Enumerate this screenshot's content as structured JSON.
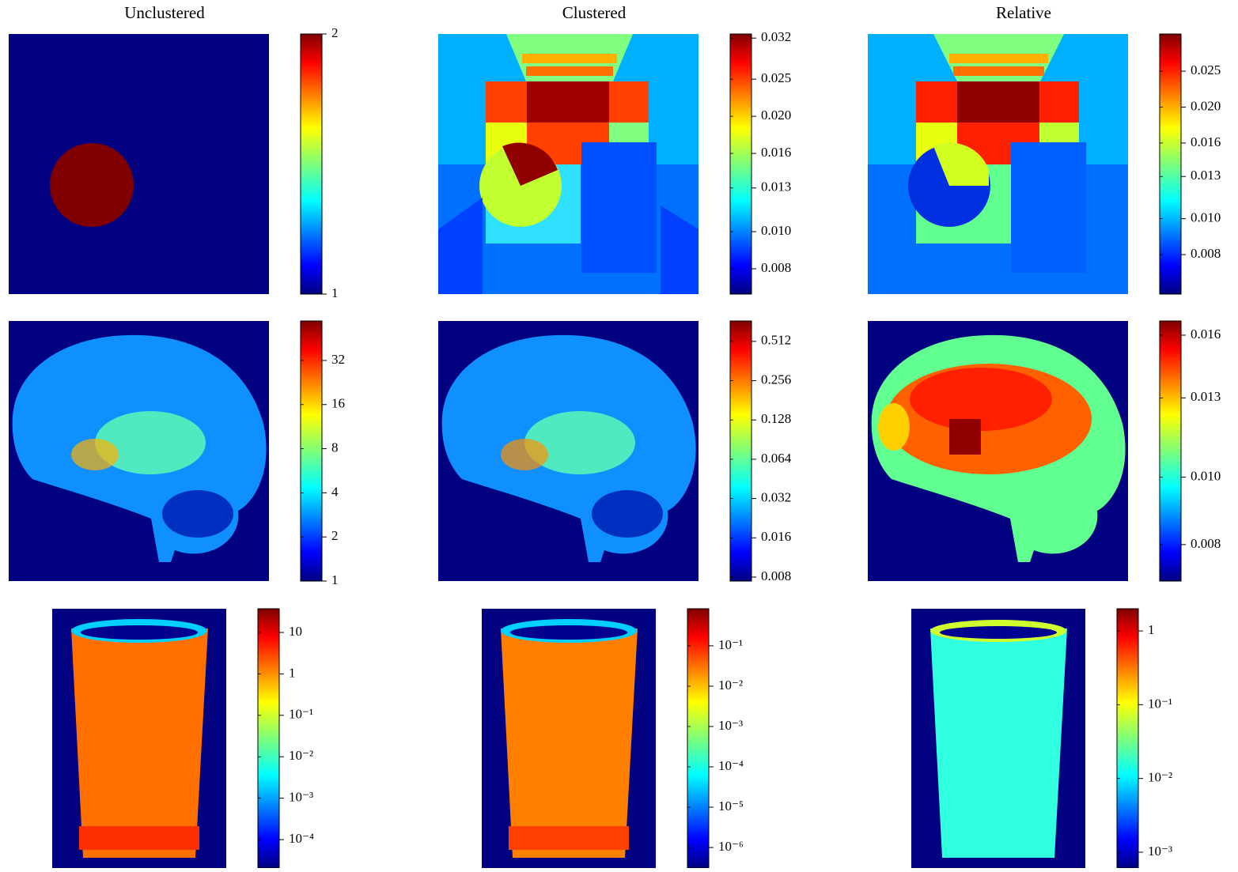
{
  "chart_data": [
    {
      "type": "heatmap",
      "title": "Unclustered",
      "colormap": "jet",
      "log": false,
      "clim": [
        1,
        2
      ],
      "ticks": [
        1,
        2
      ]
    },
    {
      "type": "heatmap",
      "title": "Clustered",
      "colormap": "jet",
      "log": true,
      "clim": [
        0.00687,
        0.0328
      ],
      "ticks": [
        0.008,
        {
          "value": 0.01,
          "label": "0.010"
        },
        0.013,
        0.016,
        {
          "value": 0.02,
          "label": "0.020"
        },
        0.025,
        0.032
      ]
    },
    {
      "type": "heatmap",
      "title": "Relative",
      "colormap": "jet",
      "log": true,
      "clim": [
        0.00626,
        0.0315
      ],
      "ticks": [
        0.008,
        {
          "value": 0.01,
          "label": "0.010"
        },
        0.013,
        0.016,
        {
          "value": 0.02,
          "label": "0.020"
        },
        0.025
      ]
    },
    {
      "type": "heatmap",
      "colormap": "jet",
      "log": true,
      "clim": [
        1,
        59.5
      ],
      "ticks": [
        1,
        2,
        4,
        8,
        16,
        32
      ]
    },
    {
      "type": "heatmap",
      "colormap": "jet",
      "log": true,
      "clim": [
        0.00746,
        0.734
      ],
      "ticks": [
        0.008,
        0.016,
        0.032,
        0.064,
        0.128,
        0.256,
        0.512
      ]
    },
    {
      "type": "heatmap",
      "colormap": "jet",
      "log": true,
      "clim": [
        0.00709,
        0.01677
      ],
      "ticks": [
        0.008,
        {
          "value": 0.01,
          "label": "0.010"
        },
        0.013,
        0.016
      ]
    },
    {
      "type": "heatmap",
      "colormap": "jet",
      "log": true,
      "clim": [
        2.06e-05,
        37.4
      ],
      "ticks": [
        10,
        1,
        {
          "value": 0.1,
          "label": "10⁻¹"
        },
        {
          "value": 0.01,
          "label": "10⁻²"
        },
        {
          "value": 0.001,
          "label": "10⁻³"
        },
        {
          "value": 0.0001,
          "label": "10⁻⁴"
        }
      ]
    },
    {
      "type": "heatmap",
      "colormap": "jet",
      "log": true,
      "clim": [
        3.1e-07,
        0.83
      ],
      "ticks": [
        {
          "value": 0.1,
          "label": "10⁻¹"
        },
        {
          "value": 0.01,
          "label": "10⁻²"
        },
        {
          "value": 0.001,
          "label": "10⁻³"
        },
        {
          "value": 0.0001,
          "label": "10⁻⁴"
        },
        {
          "value": 1e-05,
          "label": "10⁻⁵"
        },
        {
          "value": 1e-06,
          "label": "10⁻⁶"
        }
      ]
    },
    {
      "type": "heatmap",
      "colormap": "jet",
      "log": true,
      "clim": [
        0.00061,
        2.0
      ],
      "ticks": [
        1,
        {
          "value": 0.1,
          "label": "10⁻¹"
        },
        {
          "value": 0.01,
          "label": "10⁻²"
        },
        {
          "value": 0.001,
          "label": "10⁻³"
        }
      ]
    }
  ]
}
